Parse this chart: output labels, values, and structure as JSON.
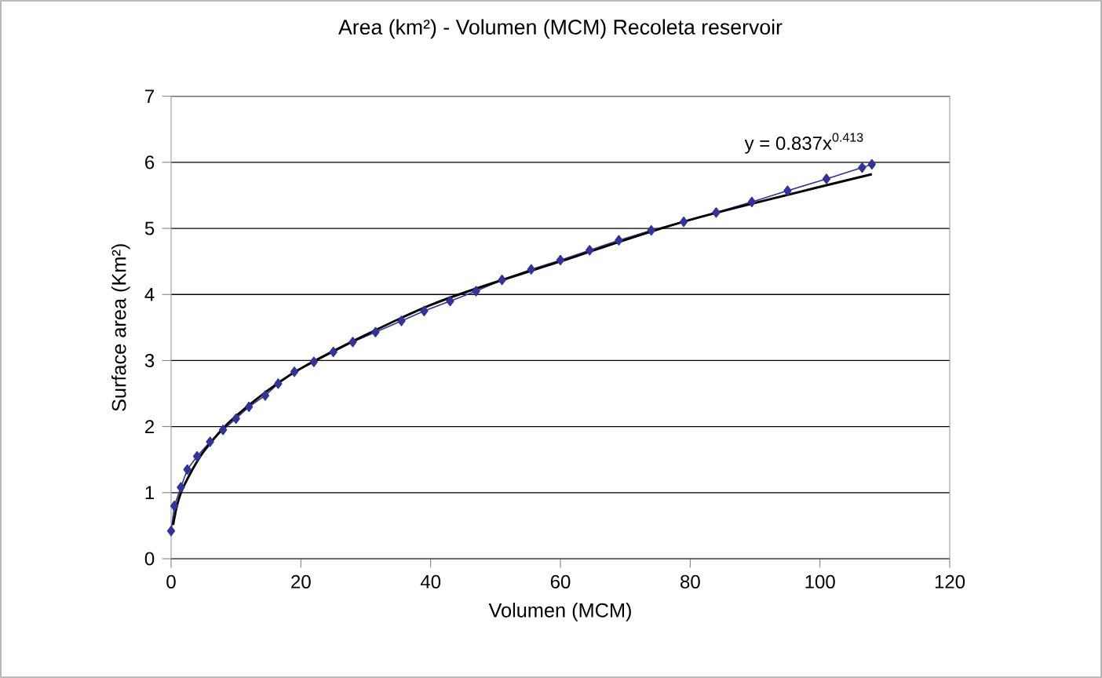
{
  "chart_data": {
    "type": "line",
    "title": "Area (km²) - Volumen (MCM) Recoleta reservoir",
    "xlabel": "Volumen (MCM)",
    "ylabel": "Surface area (Km²)",
    "annotations": [
      "y = 0.837x$^{0.413}$"
    ],
    "xlim": [
      0,
      120
    ],
    "ylim": [
      0,
      7
    ],
    "xticks": [
      0,
      20,
      40,
      60,
      80,
      100,
      120
    ],
    "yticks": [
      0,
      1,
      2,
      3,
      4,
      5,
      6,
      7
    ],
    "grid": "y",
    "marker": "diamond",
    "line_style": "solid",
    "series": [
      {
        "color": "#333399",
        "x": [
          0,
          0.5,
          1.5,
          2.5,
          4,
          6,
          8,
          10,
          12,
          14.5,
          16.5,
          19,
          22,
          25,
          28,
          31.5,
          35.5,
          39,
          43,
          47,
          51,
          55.5,
          60,
          64.5,
          69,
          74,
          79,
          84,
          89.5,
          95,
          101,
          106.5,
          108
        ],
        "values": [
          0.42,
          0.8,
          1.08,
          1.35,
          1.55,
          1.77,
          1.95,
          2.12,
          2.3,
          2.47,
          2.65,
          2.83,
          2.98,
          3.13,
          3.28,
          3.43,
          3.6,
          3.75,
          3.9,
          4.05,
          4.22,
          4.38,
          4.52,
          4.67,
          4.82,
          4.97,
          5.1,
          5.24,
          5.4,
          5.57,
          5.75,
          5.92,
          5.97
        ]
      },
      {
        "color": "#000000",
        "marker": "none",
        "x": [
          0.3,
          1,
          2,
          5,
          10,
          20,
          40,
          60,
          80,
          108
        ],
        "values": [
          0.51,
          0.84,
          1.11,
          1.62,
          2.16,
          2.88,
          3.84,
          4.5,
          5.13,
          5.82
        ]
      }
    ]
  }
}
